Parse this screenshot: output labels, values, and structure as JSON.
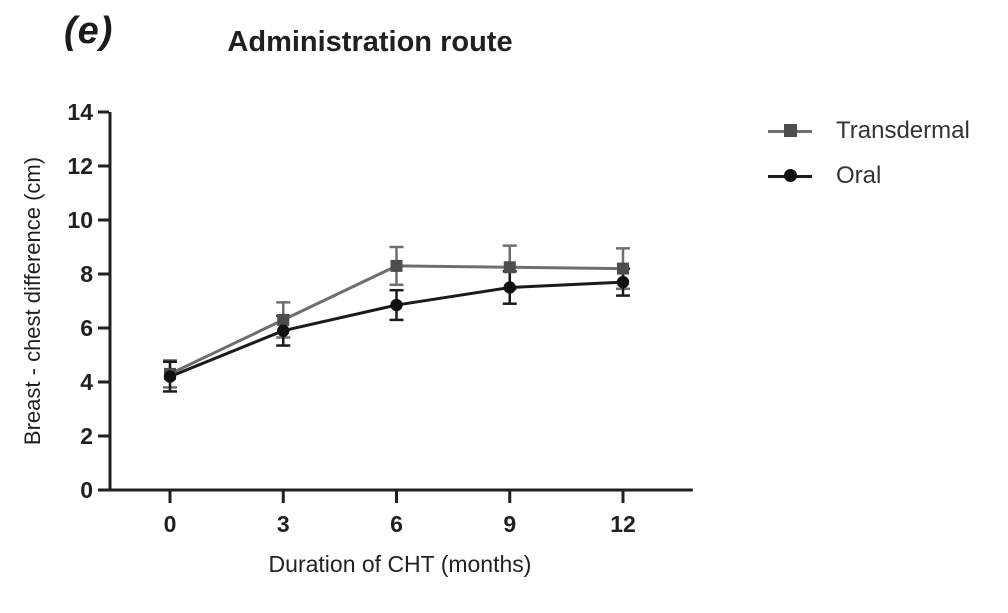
{
  "figure": {
    "panel_label": "(e)",
    "title": "Administration route"
  },
  "legend": {
    "position": "right",
    "items": [
      {
        "label": "Transdermal",
        "marker": "square",
        "marker_color": "#4d4d4d",
        "line_color": "#6e6e6e"
      },
      {
        "label": "Oral",
        "marker": "circle",
        "marker_color": "#111111",
        "line_color": "#1a1a1a"
      }
    ]
  },
  "chart_data": {
    "type": "line",
    "title": "Administration route",
    "xlabel": "Duration of CHT (months)",
    "ylabel": "Breast - chest difference (cm)",
    "x": [
      0,
      3,
      6,
      9,
      12
    ],
    "x_ticks": [
      0,
      3,
      6,
      9,
      12
    ],
    "y_ticks": [
      0,
      2,
      4,
      6,
      8,
      10,
      12,
      14
    ],
    "xlim": [
      -1.65,
      13.85
    ],
    "ylim": [
      0,
      14
    ],
    "grid": false,
    "error_bars": true,
    "legend_position": "right",
    "axis_color": "#231f20",
    "series": [
      {
        "name": "Transdermal",
        "marker": "square",
        "line_color": "#6e6e6e",
        "marker_color": "#4d4d4d",
        "values": [
          4.3,
          6.3,
          8.3,
          8.25,
          8.2
        ],
        "errors": [
          0.5,
          0.65,
          0.7,
          0.8,
          0.75
        ]
      },
      {
        "name": "Oral",
        "marker": "circle",
        "line_color": "#1a1a1a",
        "marker_color": "#111111",
        "values": [
          4.2,
          5.9,
          6.85,
          7.5,
          7.7
        ],
        "errors": [
          0.55,
          0.55,
          0.55,
          0.6,
          0.5
        ]
      }
    ]
  }
}
